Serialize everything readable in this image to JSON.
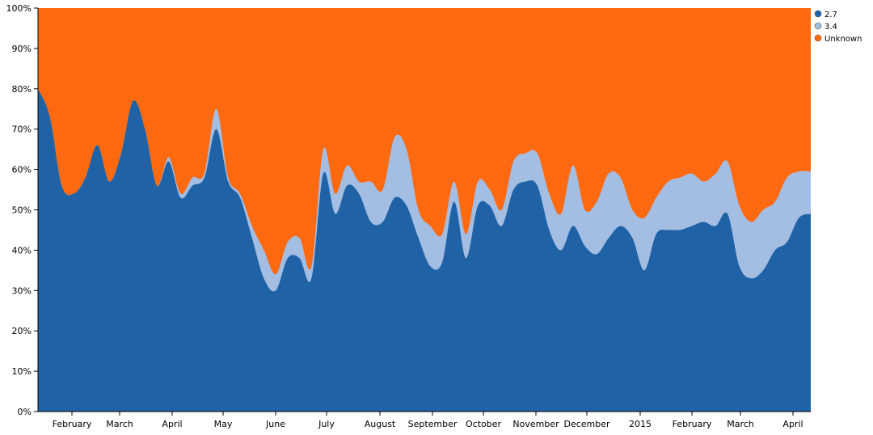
{
  "chart_data": {
    "type": "area",
    "stacked": true,
    "normalized": true,
    "colors": {
      "s27": "#1f62a6",
      "s34": "#a3bde3",
      "unknown": "#ff6a10"
    },
    "x_ticks": [
      "February",
      "March",
      "April",
      "May",
      "June",
      "July",
      "August",
      "September",
      "October",
      "November",
      "December",
      "2015",
      "February",
      "March",
      "April"
    ],
    "y_ticks": [
      "0%",
      "10%",
      "20%",
      "30%",
      "40%",
      "50%",
      "60%",
      "70%",
      "80%",
      "90%",
      "100%"
    ],
    "ylim": [
      0,
      100
    ],
    "legend_position": "top-right",
    "legend": [
      {
        "key": "s27",
        "label": "2.7"
      },
      {
        "key": "s34",
        "label": "3.4"
      },
      {
        "key": "unknown",
        "label": "Unknown"
      }
    ],
    "series": [
      {
        "name": "2.7",
        "key": "s27",
        "values": [
          80,
          73,
          56,
          54,
          58,
          66,
          57,
          64,
          77,
          70,
          56,
          62,
          53,
          56,
          58,
          70,
          57,
          53,
          43,
          33,
          30,
          38,
          38,
          33,
          59,
          49,
          56,
          54,
          47,
          47,
          53,
          51,
          43,
          36,
          37,
          52,
          38,
          51,
          51,
          46,
          55,
          57,
          56,
          45,
          40,
          46,
          41,
          39,
          43,
          46,
          43,
          35,
          44,
          45,
          45,
          46,
          47,
          46,
          49,
          36,
          33,
          35,
          40,
          42,
          48,
          49
        ]
      },
      {
        "name": "3.4",
        "key": "s34",
        "values": [
          80,
          73,
          56,
          54,
          58,
          66,
          57,
          64,
          77,
          70,
          56,
          63,
          54,
          58,
          59,
          75,
          58,
          54,
          46,
          40,
          34,
          42,
          43,
          36,
          65,
          54,
          61,
          57,
          57,
          55,
          68,
          65,
          50,
          46,
          44,
          57,
          44,
          57,
          55,
          50,
          62,
          64,
          64,
          54,
          49,
          61,
          50,
          52,
          59,
          58,
          50,
          48,
          53,
          57,
          58,
          59,
          57,
          59,
          62,
          51,
          47,
          50,
          52,
          58,
          59.5,
          59.5
        ]
      }
    ]
  }
}
